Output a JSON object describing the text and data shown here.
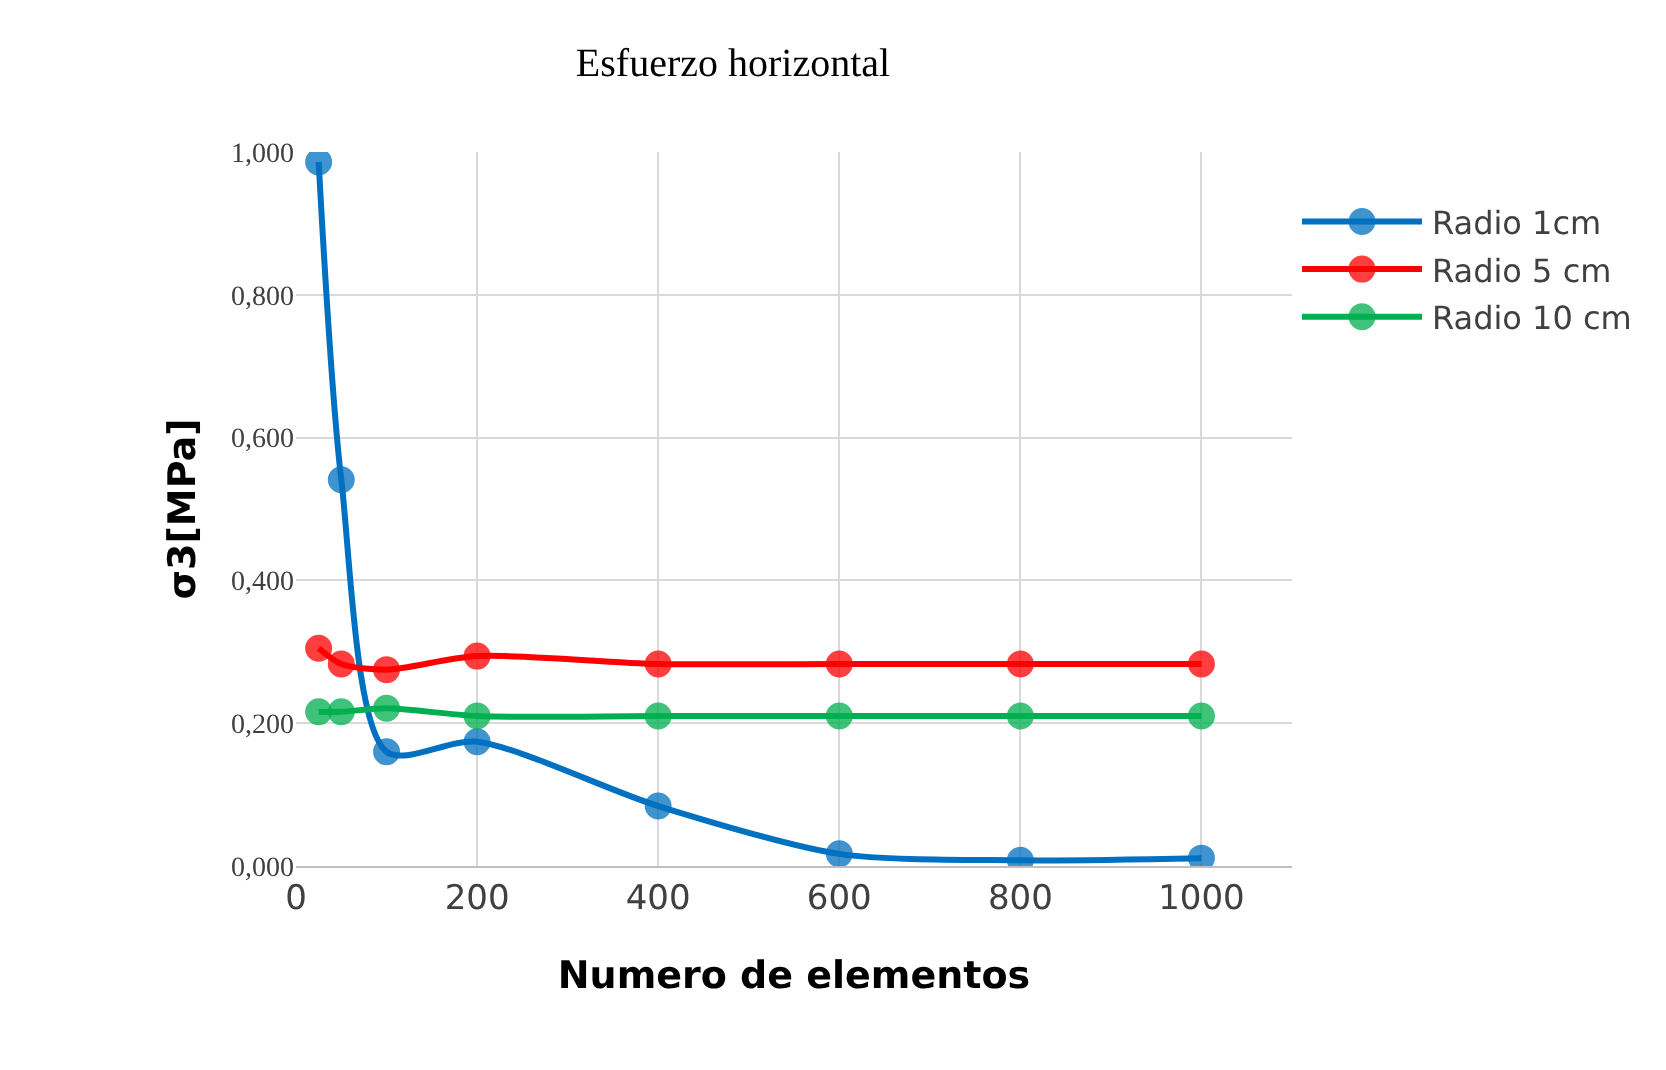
{
  "chart_data": {
    "type": "line",
    "title": "Esfuerzo horizontal",
    "xlabel": "Numero de elementos",
    "ylabel": "σ3[MPa]",
    "x": [
      25,
      50,
      100,
      200,
      400,
      600,
      800,
      1000
    ],
    "series": [
      {
        "name": "Radio 1cm",
        "color": "#0070c0",
        "values": [
          0.986,
          0.541,
          0.16,
          0.174,
          0.084,
          0.017,
          0.008,
          0.011
        ]
      },
      {
        "name": "Radio 5 cm",
        "color": "#ff0000",
        "values": [
          0.305,
          0.283,
          0.275,
          0.294,
          0.283,
          0.283,
          0.283,
          0.283
        ]
      },
      {
        "name": "Radio 10 cm",
        "color": "#00b050",
        "values": [
          0.216,
          0.216,
          0.221,
          0.21,
          0.21,
          0.21,
          0.21,
          0.21
        ]
      }
    ],
    "xlim": [
      0,
      1100
    ],
    "xticks": [
      0,
      200,
      400,
      600,
      800,
      1000
    ],
    "ylim": [
      0,
      1.0
    ],
    "yticks": [
      {
        "value": 0,
        "label": "0,000"
      },
      {
        "value": 0.2,
        "label": "0,200"
      },
      {
        "value": 0.4,
        "label": "0,400"
      },
      {
        "value": 0.6,
        "label": "0,600"
      },
      {
        "value": 0.8,
        "label": "0,800"
      },
      {
        "value": 1.0,
        "label": "1,000"
      }
    ],
    "grid": true,
    "legend": "right",
    "marker": "circle",
    "line_style": "solid"
  }
}
